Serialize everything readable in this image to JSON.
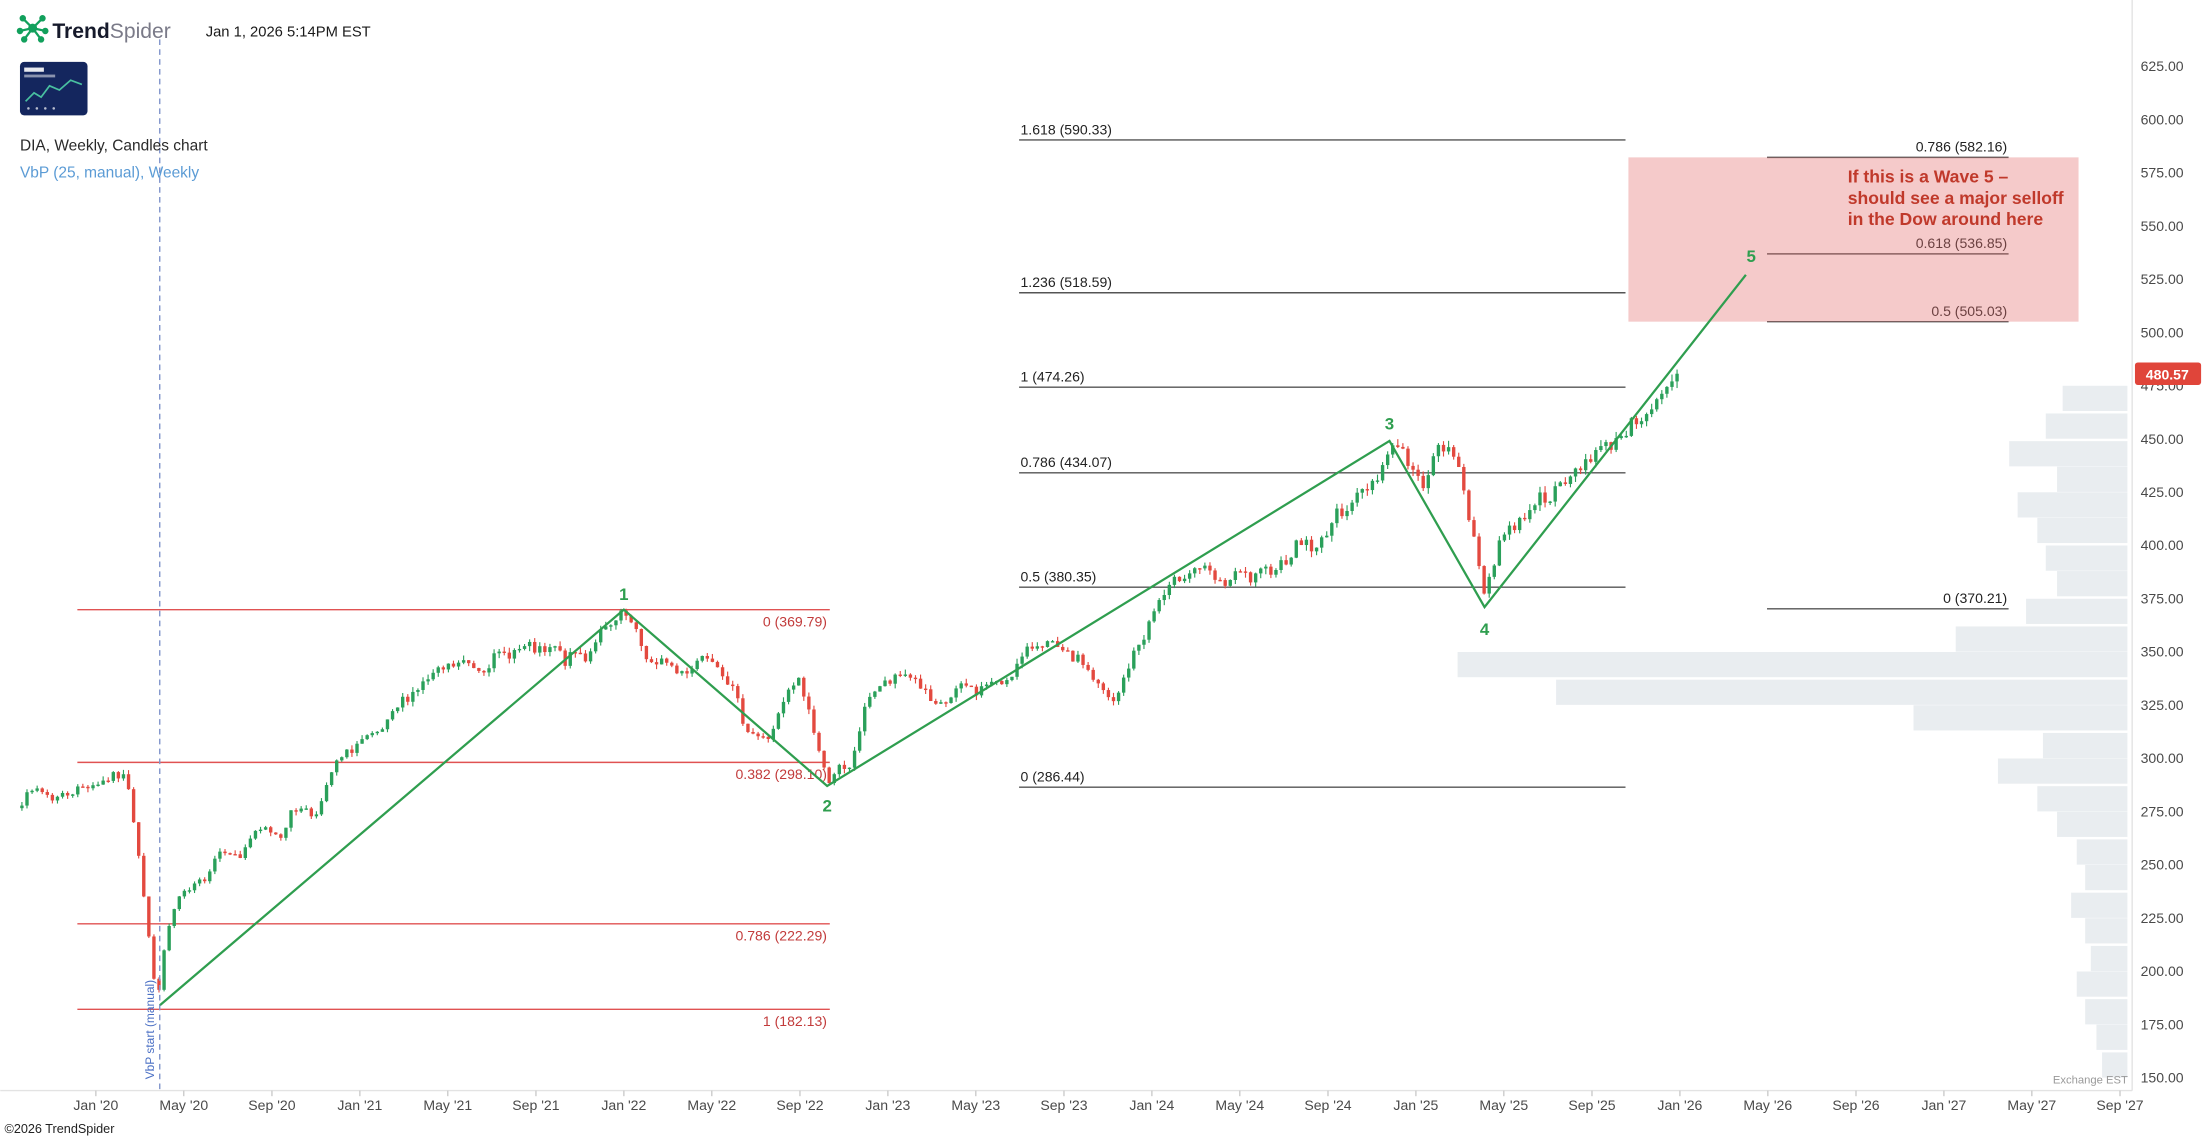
{
  "header": {
    "brand_bold": "Trend",
    "brand_light": "Spider",
    "timestamp": "Jan 1, 2026 5:14PM EST"
  },
  "chart_info": {
    "symbol_line": "DIA, Weekly, Candles chart",
    "indicator_line": "VbP (25, manual), Weekly"
  },
  "footer": {
    "copyright": "©2026 TrendSpider",
    "exchange_label": "Exchange EST"
  },
  "price_badge": {
    "text": "480.57",
    "color": "#e0453a"
  },
  "chart_data": {
    "type": "candlestick",
    "title": "DIA, Weekly, Candles chart",
    "symbol": "DIA",
    "timeframe": "Weekly",
    "x_domain": [
      2019.638,
      2027.713
    ],
    "y_domain": [
      144.0,
      656.05
    ],
    "grid": false,
    "last_price": 480.57,
    "candle_up_color": "#2aa05a",
    "candle_down_color": "#e3493f",
    "price_ticks": [
      625,
      600,
      575,
      550,
      525,
      500,
      475,
      450,
      425,
      400,
      375,
      350,
      325,
      300,
      275,
      250,
      225,
      200,
      175,
      150
    ],
    "time_ticks": [
      {
        "label": "Jan '20",
        "t": 2020.0
      },
      {
        "label": "May '20",
        "t": 2020.333
      },
      {
        "label": "Sep '20",
        "t": 2020.667
      },
      {
        "label": "Jan '21",
        "t": 2021.0
      },
      {
        "label": "May '21",
        "t": 2021.333
      },
      {
        "label": "Sep '21",
        "t": 2021.667
      },
      {
        "label": "Jan '22",
        "t": 2022.0
      },
      {
        "label": "May '22",
        "t": 2022.333
      },
      {
        "label": "Sep '22",
        "t": 2022.667
      },
      {
        "label": "Jan '23",
        "t": 2023.0
      },
      {
        "label": "May '23",
        "t": 2023.333
      },
      {
        "label": "Sep '23",
        "t": 2023.667
      },
      {
        "label": "Jan '24",
        "t": 2024.0
      },
      {
        "label": "May '24",
        "t": 2024.333
      },
      {
        "label": "Sep '24",
        "t": 2024.667
      },
      {
        "label": "Jan '25",
        "t": 2025.0
      },
      {
        "label": "May '25",
        "t": 2025.333
      },
      {
        "label": "Sep '25",
        "t": 2025.667
      },
      {
        "label": "Jan '26",
        "t": 2026.0
      },
      {
        "label": "May '26",
        "t": 2026.333
      },
      {
        "label": "Sep '26",
        "t": 2026.667
      },
      {
        "label": "Jan '27",
        "t": 2027.0
      },
      {
        "label": "May '27",
        "t": 2027.333
      },
      {
        "label": "Sep '27",
        "t": 2027.667
      }
    ],
    "close_anchors": [
      [
        2019.72,
        280
      ],
      [
        2019.78,
        286
      ],
      [
        2019.84,
        281
      ],
      [
        2019.9,
        284
      ],
      [
        2019.96,
        287
      ],
      [
        2020.02,
        289
      ],
      [
        2020.08,
        292
      ],
      [
        2020.12,
        290
      ],
      [
        2020.16,
        258
      ],
      [
        2020.2,
        217
      ],
      [
        2020.23,
        185
      ],
      [
        2020.27,
        218
      ],
      [
        2020.31,
        234
      ],
      [
        2020.36,
        238
      ],
      [
        2020.42,
        245
      ],
      [
        2020.46,
        256
      ],
      [
        2020.5,
        258
      ],
      [
        2020.54,
        252
      ],
      [
        2020.58,
        262
      ],
      [
        2020.64,
        267
      ],
      [
        2020.7,
        264
      ],
      [
        2020.74,
        274
      ],
      [
        2020.78,
        278
      ],
      [
        2020.82,
        273
      ],
      [
        2020.86,
        280
      ],
      [
        2020.9,
        296
      ],
      [
        2020.95,
        302
      ],
      [
        2021.0,
        308
      ],
      [
        2021.06,
        310
      ],
      [
        2021.1,
        315
      ],
      [
        2021.16,
        327
      ],
      [
        2021.22,
        333
      ],
      [
        2021.28,
        339
      ],
      [
        2021.34,
        343
      ],
      [
        2021.4,
        345
      ],
      [
        2021.46,
        342
      ],
      [
        2021.52,
        348
      ],
      [
        2021.58,
        350
      ],
      [
        2021.64,
        352
      ],
      [
        2021.7,
        349
      ],
      [
        2021.74,
        352
      ],
      [
        2021.78,
        345
      ],
      [
        2021.82,
        350
      ],
      [
        2021.86,
        347
      ],
      [
        2021.9,
        358
      ],
      [
        2021.95,
        361
      ],
      [
        2022.0,
        368
      ],
      [
        2022.04,
        360
      ],
      [
        2022.08,
        349
      ],
      [
        2022.12,
        342
      ],
      [
        2022.16,
        347
      ],
      [
        2022.2,
        340
      ],
      [
        2022.25,
        342
      ],
      [
        2022.29,
        348
      ],
      [
        2022.33,
        349
      ],
      [
        2022.38,
        340
      ],
      [
        2022.42,
        330
      ],
      [
        2022.46,
        315
      ],
      [
        2022.5,
        311
      ],
      [
        2022.54,
        308
      ],
      [
        2022.58,
        318
      ],
      [
        2022.62,
        330
      ],
      [
        2022.66,
        337
      ],
      [
        2022.7,
        323
      ],
      [
        2022.74,
        303
      ],
      [
        2022.77,
        289
      ],
      [
        2022.81,
        296
      ],
      [
        2022.85,
        292
      ],
      [
        2022.89,
        312
      ],
      [
        2022.93,
        330
      ],
      [
        2022.97,
        334
      ],
      [
        2023.02,
        336
      ],
      [
        2023.06,
        340
      ],
      [
        2023.1,
        338
      ],
      [
        2023.14,
        331
      ],
      [
        2023.18,
        323
      ],
      [
        2023.22,
        326
      ],
      [
        2023.26,
        332
      ],
      [
        2023.3,
        334
      ],
      [
        2023.34,
        331
      ],
      [
        2023.38,
        336
      ],
      [
        2023.42,
        334
      ],
      [
        2023.46,
        339
      ],
      [
        2023.5,
        345
      ],
      [
        2023.54,
        352
      ],
      [
        2023.58,
        355
      ],
      [
        2023.62,
        353
      ],
      [
        2023.66,
        349
      ],
      [
        2023.7,
        347
      ],
      [
        2023.74,
        345
      ],
      [
        2023.78,
        337
      ],
      [
        2023.82,
        330
      ],
      [
        2023.86,
        325
      ],
      [
        2023.9,
        340
      ],
      [
        2023.94,
        351
      ],
      [
        2023.98,
        360
      ],
      [
        2024.02,
        373
      ],
      [
        2024.06,
        378
      ],
      [
        2024.1,
        385
      ],
      [
        2024.14,
        388
      ],
      [
        2024.18,
        390
      ],
      [
        2024.22,
        386
      ],
      [
        2024.26,
        381
      ],
      [
        2024.3,
        384
      ],
      [
        2024.34,
        387
      ],
      [
        2024.38,
        383
      ],
      [
        2024.42,
        387
      ],
      [
        2024.46,
        390
      ],
      [
        2024.5,
        392
      ],
      [
        2024.54,
        399
      ],
      [
        2024.58,
        403
      ],
      [
        2024.62,
        396
      ],
      [
        2024.66,
        407
      ],
      [
        2024.7,
        414
      ],
      [
        2024.74,
        419
      ],
      [
        2024.78,
        423
      ],
      [
        2024.82,
        428
      ],
      [
        2024.86,
        434
      ],
      [
        2024.9,
        445
      ],
      [
        2024.93,
        449
      ],
      [
        2024.96,
        441
      ],
      [
        2024.99,
        434
      ],
      [
        2025.02,
        428
      ],
      [
        2025.05,
        436
      ],
      [
        2025.08,
        444
      ],
      [
        2025.11,
        446
      ],
      [
        2025.14,
        441
      ],
      [
        2025.17,
        437
      ],
      [
        2025.2,
        415
      ],
      [
        2025.23,
        394
      ],
      [
        2025.26,
        378
      ],
      [
        2025.29,
        390
      ],
      [
        2025.32,
        404
      ],
      [
        2025.36,
        408
      ],
      [
        2025.4,
        412
      ],
      [
        2025.44,
        420
      ],
      [
        2025.48,
        423
      ],
      [
        2025.52,
        424
      ],
      [
        2025.56,
        428
      ],
      [
        2025.6,
        434
      ],
      [
        2025.64,
        440
      ],
      [
        2025.68,
        444
      ],
      [
        2025.72,
        446
      ],
      [
        2025.76,
        450
      ],
      [
        2025.8,
        455
      ],
      [
        2025.84,
        459
      ],
      [
        2025.88,
        464
      ],
      [
        2025.92,
        467
      ],
      [
        2025.96,
        473
      ],
      [
        2026.0,
        480.57
      ]
    ],
    "elliott_wave": {
      "color": "#2f9e4f",
      "points": [
        [
          2020.242,
          184
        ],
        [
          2022.0,
          369.8
        ],
        [
          2022.77,
          287
        ],
        [
          2024.9,
          449
        ],
        [
          2025.26,
          371
        ],
        [
          2026.25,
          527
        ]
      ],
      "labels": [
        {
          "text": "1",
          "t": 2022.0,
          "price": 369.8,
          "dy": -7
        },
        {
          "text": "2",
          "t": 2022.77,
          "price": 287,
          "dy": 18
        },
        {
          "text": "3",
          "t": 2024.9,
          "price": 449,
          "dy": -8
        },
        {
          "text": "4",
          "t": 2025.26,
          "price": 371,
          "dy": 20
        },
        {
          "text": "5",
          "t": 2026.27,
          "price": 533,
          "dy": 0
        }
      ]
    },
    "fib_sets": [
      {
        "name": "fib-retracement-2020-2022",
        "color": "#e05252",
        "label_color": "#c23b3b",
        "x_range": [
          2019.93,
          2022.78
        ],
        "label_side": "right-below",
        "levels": [
          {
            "label": "0 (369.79)",
            "value": 369.79
          },
          {
            "label": "0.382 (298.10)",
            "value": 298.1
          },
          {
            "label": "0.786 (222.29)",
            "value": 222.29
          },
          {
            "label": "1 (182.13)",
            "value": 182.13
          }
        ]
      },
      {
        "name": "fib-extension-wave-3",
        "color": "#555555",
        "label_color": "#222222",
        "x_range": [
          2023.497,
          2025.794
        ],
        "label_side": "left-above",
        "levels": [
          {
            "label": "1.618 (590.33)",
            "value": 590.33
          },
          {
            "label": "1.236 (518.59)",
            "value": 518.59
          },
          {
            "label": "1 (474.26)",
            "value": 474.26
          },
          {
            "label": "0.786 (434.07)",
            "value": 434.07
          },
          {
            "label": "0.5 (380.35)",
            "value": 380.35
          },
          {
            "label": "0 (286.44)",
            "value": 286.44
          }
        ]
      },
      {
        "name": "fib-extension-wave-5",
        "color": "#555555",
        "label_color": "#222222",
        "x_range": [
          2026.33,
          2027.245
        ],
        "label_side": "right-above",
        "levels": [
          {
            "label": "0.786 (582.16)",
            "value": 582.16
          },
          {
            "label": "0.618 (536.85)",
            "value": 536.85
          },
          {
            "label": "0.5 (505.03)",
            "value": 505.03
          },
          {
            "label": "0 (370.21)",
            "value": 370.21
          }
        ]
      }
    ],
    "projection_box": {
      "x_range": [
        2025.805,
        2027.51
      ],
      "y_range": [
        505.03,
        582.16
      ],
      "fill": "#e57373",
      "fill_opacity": 0.38,
      "text_color": "#c0392b",
      "text_lines": [
        "If this is a Wave 5 –",
        "should see a major selloff",
        "in the Dow around here"
      ]
    },
    "vbp": {
      "bar_color": "#b6c3cc",
      "bar_opacity": 0.3,
      "right_edge_t": 2027.695,
      "bucket_height_dollars": 12.5,
      "bars": [
        [
          469,
          46
        ],
        [
          456,
          58
        ],
        [
          443,
          84
        ],
        [
          431,
          50
        ],
        [
          419,
          78
        ],
        [
          407,
          64
        ],
        [
          394,
          58
        ],
        [
          382,
          50
        ],
        [
          369,
          72
        ],
        [
          356,
          122
        ],
        [
          344,
          476
        ],
        [
          331,
          406
        ],
        [
          319,
          152
        ],
        [
          306,
          60
        ],
        [
          294,
          92
        ],
        [
          281,
          64
        ],
        [
          269,
          50
        ],
        [
          256,
          36
        ],
        [
          244,
          30
        ],
        [
          231,
          40
        ],
        [
          219,
          30
        ],
        [
          206,
          26
        ],
        [
          194,
          36
        ],
        [
          181,
          30
        ],
        [
          169,
          22
        ],
        [
          156,
          18
        ]
      ]
    },
    "vbp_start": {
      "t": 2020.242,
      "label": "VbP start (manual)",
      "color": "#4a6fc4",
      "line_color": "#8296cc"
    }
  }
}
